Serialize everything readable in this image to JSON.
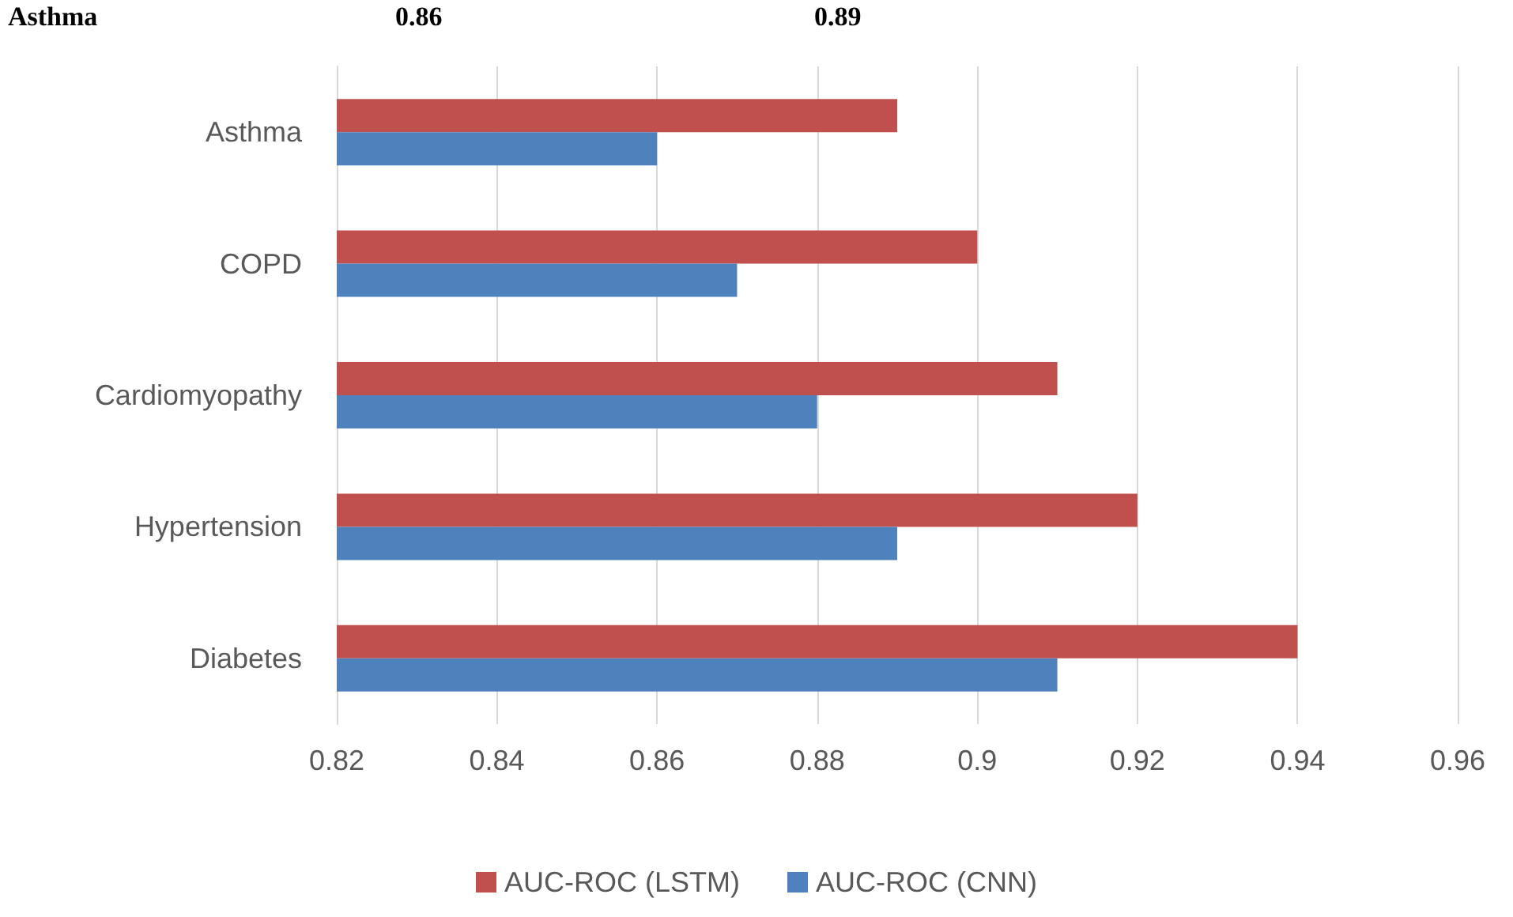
{
  "chart_data": {
    "type": "bar",
    "orientation": "horizontal",
    "categories": [
      "Asthma",
      "COPD",
      "Cardiomyopathy",
      "Hypertension",
      "Diabetes"
    ],
    "series": [
      {
        "name": "AUC-ROC (LSTM)",
        "color": "#c0504d",
        "values": [
          0.89,
          0.9,
          0.91,
          0.92,
          0.94
        ]
      },
      {
        "name": "AUC-ROC (CNN)",
        "color": "#4f81bd",
        "values": [
          0.86,
          0.87,
          0.88,
          0.89,
          0.91
        ]
      }
    ],
    "xlim": [
      0.82,
      0.96
    ],
    "xticks": [
      0.82,
      0.84,
      0.86,
      0.88,
      0.9,
      0.92,
      0.94,
      0.96
    ],
    "grid": "x",
    "legend": "bottom",
    "annotations": [
      "Asthma",
      "0.86",
      "0.89"
    ]
  }
}
